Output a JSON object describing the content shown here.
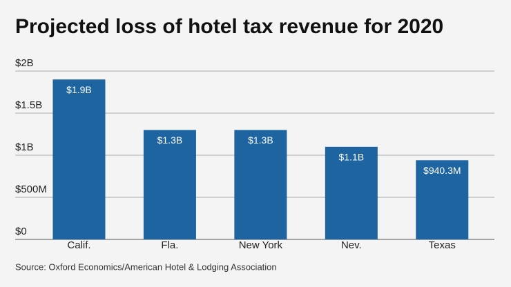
{
  "chart_data": {
    "type": "bar",
    "title": "Projected loss of hotel tax revenue for 2020",
    "source": "Source: Oxford Economics/American Hotel & Lodging Association",
    "categories": [
      "Calif.",
      "Fla.",
      "New York",
      "Nev.",
      "Texas"
    ],
    "values": [
      1900000000,
      1300000000,
      1300000000,
      1100000000,
      940300000
    ],
    "value_labels": [
      "$1.9B",
      "$1.3B",
      "$1.3B",
      "$1.1B",
      "$940.3M"
    ],
    "color": "#1d64a0",
    "ylim": [
      0,
      2000000000
    ],
    "yticks": [
      {
        "value": 0,
        "label": "$0"
      },
      {
        "value": 500000000,
        "label": "$500M"
      },
      {
        "value": 1000000000,
        "label": "$1B"
      },
      {
        "value": 1500000000,
        "label": "$1.5B"
      },
      {
        "value": 2000000000,
        "label": "$2B"
      }
    ],
    "grid": true
  }
}
